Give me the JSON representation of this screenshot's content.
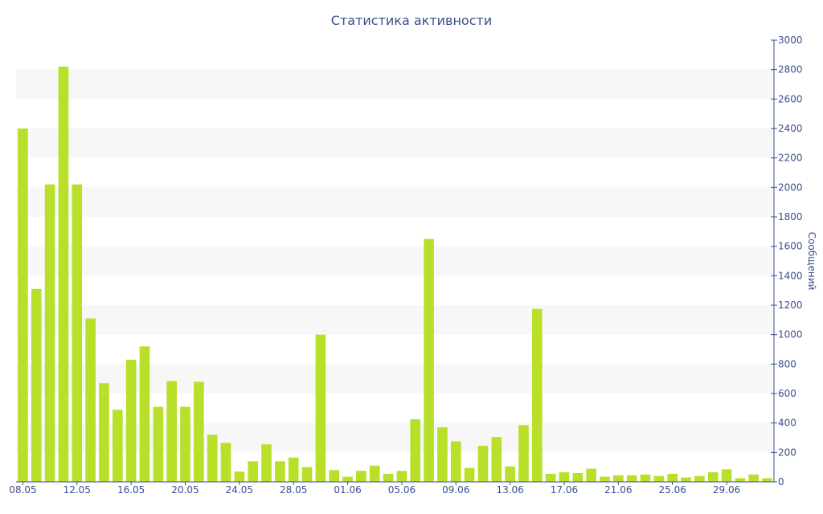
{
  "chart_data": {
    "type": "bar",
    "title": "Статистика активности",
    "ylabel": "Сообщений",
    "xlabel": "",
    "ylim": [
      0,
      3000
    ],
    "yticks": [
      0,
      200,
      400,
      600,
      800,
      1000,
      1200,
      1400,
      1600,
      1800,
      2000,
      2200,
      2400,
      2600,
      2800,
      3000
    ],
    "categories": [
      "08.05",
      "09.05",
      "10.05",
      "11.05",
      "12.05",
      "13.05",
      "14.05",
      "15.05",
      "16.05",
      "17.05",
      "18.05",
      "19.05",
      "20.05",
      "21.05",
      "22.05",
      "23.05",
      "24.05",
      "25.05",
      "26.05",
      "27.05",
      "28.05",
      "29.05",
      "30.05",
      "31.05",
      "01.06",
      "02.06",
      "03.06",
      "04.06",
      "05.06",
      "06.06",
      "07.06",
      "08.06",
      "09.06",
      "10.06",
      "11.06",
      "12.06",
      "13.06",
      "14.06",
      "15.06",
      "16.06",
      "17.06",
      "18.06",
      "19.06",
      "20.06",
      "21.06",
      "22.06",
      "23.06",
      "24.06",
      "25.06",
      "26.06",
      "27.06",
      "28.06",
      "29.06",
      "30.06",
      "01.07",
      "02.07"
    ],
    "xtick_labels": [
      "08.05",
      "12.05",
      "16.05",
      "20.05",
      "24.05",
      "28.05",
      "01.06",
      "05.06",
      "09.06",
      "13.06",
      "17.06",
      "21.06",
      "25.06",
      "29.06"
    ],
    "values": [
      2400,
      1310,
      2020,
      2820,
      2020,
      1110,
      670,
      490,
      830,
      920,
      510,
      685,
      510,
      680,
      320,
      265,
      70,
      140,
      255,
      140,
      165,
      100,
      1000,
      80,
      35,
      75,
      110,
      55,
      75,
      425,
      1650,
      370,
      275,
      95,
      245,
      305,
      105,
      385,
      1175,
      55,
      65,
      60,
      90,
      35,
      45,
      45,
      50,
      40,
      55,
      30,
      40,
      65,
      85,
      25,
      50,
      25
    ],
    "bar_color": "#b8e02a",
    "band_color": "#f7f7f7",
    "axis_color": "#3a4f8c",
    "y_axis_side": "right",
    "grid": "alternating-bands"
  }
}
